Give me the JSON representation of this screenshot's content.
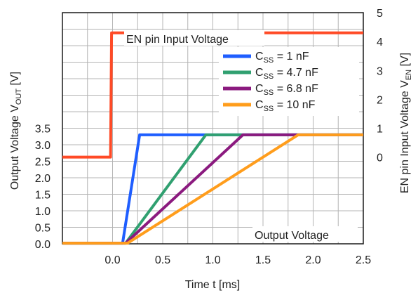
{
  "chart_data": {
    "type": "line",
    "xlabel": "Time t [ms]",
    "ylabel_left": "Output Voltage V",
    "ylabel_left_sub": "OUT",
    "ylabel_left_unit": " [V]",
    "ylabel_right": "EN pin Input Voltage  V",
    "ylabel_right_sub": "EN",
    "ylabel_right_unit": " [V]",
    "xlim": [
      -0.5,
      2.5
    ],
    "ylim_left": [
      0,
      7
    ],
    "ylim_right": [
      -3,
      5
    ],
    "grid": true,
    "legend_placement": "top-right",
    "x_ticks": [
      0.0,
      0.5,
      1.0,
      1.5,
      2.0,
      2.5
    ],
    "x_tick_labels": [
      "0.0",
      "0.5",
      "1.0",
      "1.5",
      "2.0",
      "2.5"
    ],
    "y_left_ticks": [
      0.0,
      0.5,
      1.0,
      1.5,
      2.0,
      2.5,
      3.0,
      3.5
    ],
    "y_left_tick_labels": [
      "0.0",
      "0.5",
      "1.0",
      "1.5",
      "2.0",
      "2.5",
      "3.0",
      "3.5"
    ],
    "y_right_ticks": [
      0,
      1,
      2,
      3,
      4,
      5
    ],
    "y_right_tick_labels": [
      "0",
      "1",
      "2",
      "3",
      "4",
      "5"
    ],
    "annotations": {
      "en_label": "EN pin Input Voltage",
      "vout_label": "Output  Voltage"
    },
    "series": [
      {
        "name": "EN",
        "axis": "right",
        "color": "#ff4a26",
        "x": [
          -0.5,
          -0.02,
          -0.01,
          2.5
        ],
        "y": [
          0.0,
          0.0,
          4.3,
          4.3
        ]
      },
      {
        "name": "C_SS = 1 nF",
        "legend_prefix": "C",
        "legend_sub": "SS",
        "legend_suffix": " =    1 nF",
        "axis": "left",
        "color": "#1f5eff",
        "x": [
          -0.5,
          0.1,
          0.27,
          2.5
        ],
        "y": [
          0.02,
          0.02,
          3.3,
          3.3
        ]
      },
      {
        "name": "C_SS = 4.7 nF",
        "legend_prefix": "C",
        "legend_sub": "SS",
        "legend_suffix": " = 4.7 nF",
        "axis": "left",
        "color": "#30a070",
        "x": [
          -0.5,
          0.13,
          0.93,
          2.5
        ],
        "y": [
          0.02,
          0.02,
          3.3,
          3.3
        ]
      },
      {
        "name": "C_SS = 6.8 nF",
        "legend_prefix": "C",
        "legend_sub": "SS",
        "legend_suffix": " = 6.8 nF",
        "axis": "left",
        "color": "#8b1a7f",
        "x": [
          -0.5,
          0.13,
          1.3,
          2.5
        ],
        "y": [
          0.02,
          0.02,
          3.3,
          3.3
        ]
      },
      {
        "name": "C_SS = 10 nF",
        "legend_prefix": "C",
        "legend_sub": "SS",
        "legend_suffix": " = 10  nF",
        "axis": "left",
        "color": "#ff9d1c",
        "x": [
          -0.5,
          0.15,
          1.85,
          2.5
        ],
        "y": [
          0.02,
          0.02,
          3.3,
          3.3
        ]
      }
    ]
  }
}
